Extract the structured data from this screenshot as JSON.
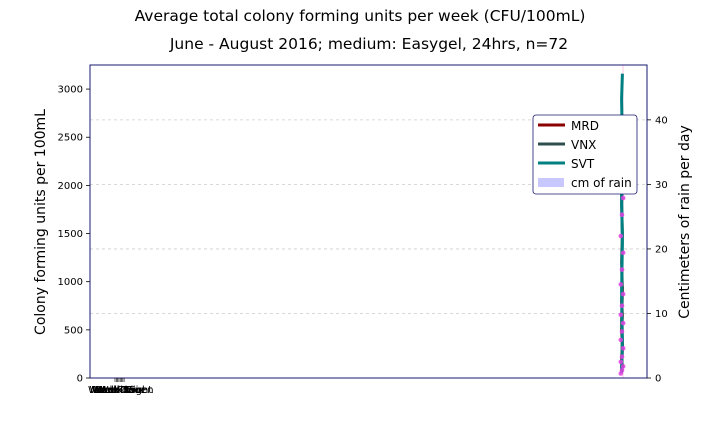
{
  "chart_data": {
    "type": "line",
    "title": "Average total colony forming units per week (CFU/100mL)",
    "subtitle": "June - August 2016; medium: Easygel, 24hrs, n=72",
    "xlabel": "",
    "ylabel": "Colony forming units per 100mL",
    "y2label": "Centimeters of rain per day",
    "ylim": [
      0,
      3250
    ],
    "y2lim": [
      0,
      48.5
    ],
    "yticks": [
      0,
      500,
      1000,
      1500,
      2000,
      2500,
      3000
    ],
    "y2ticks": [
      0,
      10,
      20,
      30,
      40
    ],
    "ytick_labels": [
      "0",
      "500",
      "1000",
      "1500",
      "2000",
      "2500",
      "3000"
    ],
    "y2tick_labels": [
      "0",
      "10",
      "20",
      "30",
      "40"
    ],
    "x_tick_labels": [
      "Week One",
      "Week Two",
      "Week Three",
      "Week Four",
      "Week Five",
      "Week Six",
      "Week Seven",
      "Week Eight"
    ],
    "grid": true,
    "legend_position": "upper-right",
    "legend": [
      "MRD",
      "VNX",
      "SVT",
      "cm of rain"
    ],
    "colors": {
      "MRD": "#8b0000",
      "VNX": "#2f4f4f",
      "SVT": "#008080",
      "rain": "#c8c8ff",
      "points": "#e040e0",
      "frame": "#191970"
    },
    "series": [
      {
        "name": "MRD",
        "values": [
          80,
          120,
          200,
          350,
          500,
          650,
          800,
          950
        ]
      },
      {
        "name": "VNX",
        "values": [
          100,
          300,
          600,
          900,
          1200,
          1500,
          1800,
          2100
        ]
      },
      {
        "name": "SVT",
        "values": [
          50,
          400,
          900,
          1400,
          1900,
          2400,
          2900,
          3160
        ]
      }
    ],
    "rain_points": [
      0.7,
      1.2,
      1.8,
      2.5,
      3.3,
      4.6,
      5.9,
      7.2,
      8.5,
      9.8,
      11.2,
      13.0,
      14.5,
      16.8,
      19.4,
      22.0,
      25.3,
      27.9,
      30.0,
      32.5,
      34.6,
      36.1,
      37.9
    ]
  }
}
